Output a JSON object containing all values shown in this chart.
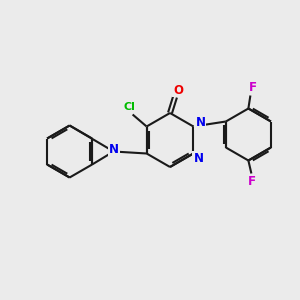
{
  "bg_color": "#ebebeb",
  "bond_color": "#1a1a1a",
  "N_color": "#0000ee",
  "O_color": "#ee0000",
  "Cl_color": "#00bb00",
  "F_color": "#cc00cc",
  "lw": 1.5,
  "fs": 8.0,
  "figsize": [
    3.0,
    3.0
  ],
  "dpi": 100,
  "xlim": [
    0,
    300
  ],
  "ylim": [
    0,
    300
  ]
}
